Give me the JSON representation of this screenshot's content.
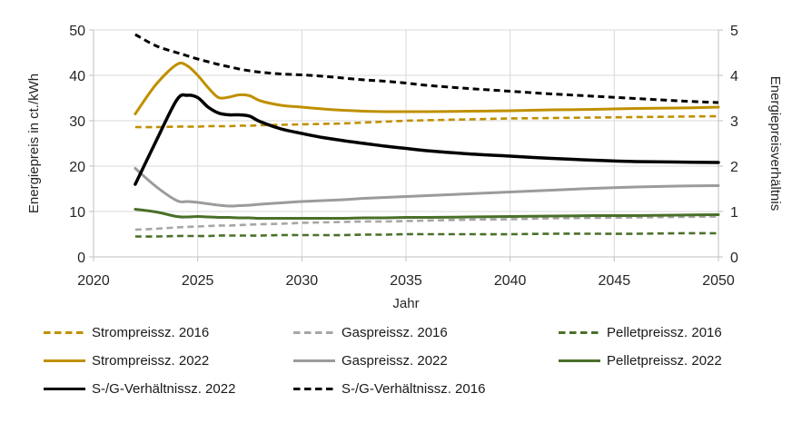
{
  "chart_data": {
    "type": "line",
    "xlabel": "Jahr",
    "ylabel_left": "Energiepreis in ct./kWh",
    "ylabel_right": "Energiepreisverhältnis",
    "xlim": [
      2020,
      2050
    ],
    "xticks": [
      2020,
      2025,
      2030,
      2035,
      2040,
      2045,
      2050
    ],
    "ylim_left": [
      0,
      50
    ],
    "yticks_left": [
      0,
      10,
      20,
      30,
      40,
      50
    ],
    "ylim_right": [
      0,
      5
    ],
    "yticks_right": [
      0,
      1,
      2,
      3,
      4,
      5
    ],
    "grid": true,
    "legend_position": "bottom",
    "x": [
      2022,
      2023,
      2024,
      2024.5,
      2025,
      2025.5,
      2026,
      2026.5,
      2027,
      2027.5,
      2028,
      2029,
      2030,
      2031,
      2032,
      2033,
      2034,
      2035,
      2036,
      2038,
      2040,
      2042,
      2044,
      2046,
      2048,
      2050
    ],
    "series": [
      {
        "name": "Strompreissz. 2016",
        "axis": "left",
        "unit": "ct./kWh",
        "color": "#BF9000",
        "dash": true,
        "values": [
          28.6,
          28.6,
          28.7,
          28.7,
          28.7,
          28.8,
          28.8,
          28.8,
          28.9,
          28.9,
          29.0,
          29.1,
          29.2,
          29.3,
          29.4,
          29.6,
          29.8,
          30.0,
          30.1,
          30.3,
          30.5,
          30.6,
          30.7,
          30.8,
          30.9,
          31.0
        ]
      },
      {
        "name": "Strompreissz. 2022",
        "axis": "left",
        "unit": "ct./kWh",
        "color": "#BF9000",
        "dash": false,
        "values": [
          31.5,
          38.0,
          42.4,
          42.1,
          40.0,
          37.3,
          35.1,
          35.2,
          35.7,
          35.5,
          34.4,
          33.4,
          33.0,
          32.6,
          32.3,
          32.1,
          32.0,
          32.0,
          32.0,
          32.1,
          32.2,
          32.4,
          32.5,
          32.7,
          32.8,
          33.0
        ]
      },
      {
        "name": "Gaspreissz. 2016",
        "axis": "left",
        "unit": "ct./kWh",
        "color": "#A6A6A6",
        "dash": true,
        "values": [
          6.0,
          6.2,
          6.5,
          6.6,
          6.7,
          6.8,
          6.9,
          6.9,
          7.0,
          7.1,
          7.2,
          7.3,
          7.5,
          7.6,
          7.7,
          7.8,
          7.8,
          7.9,
          8.0,
          8.2,
          8.3,
          8.5,
          8.6,
          8.7,
          8.8,
          8.9
        ]
      },
      {
        "name": "Gaspreissz. 2022",
        "axis": "left",
        "unit": "ct./kWh",
        "color": "#9B9B9B",
        "dash": false,
        "values": [
          19.5,
          15.5,
          12.4,
          12.2,
          12.0,
          11.7,
          11.4,
          11.2,
          11.3,
          11.4,
          11.6,
          11.9,
          12.2,
          12.4,
          12.6,
          12.9,
          13.1,
          13.3,
          13.5,
          13.9,
          14.3,
          14.7,
          15.1,
          15.4,
          15.6,
          15.7
        ]
      },
      {
        "name": "Pelletpreissz. 2016",
        "axis": "left",
        "unit": "ct./kWh",
        "color": "#4A7029",
        "dash": true,
        "values": [
          4.5,
          4.5,
          4.6,
          4.6,
          4.6,
          4.6,
          4.7,
          4.7,
          4.7,
          4.7,
          4.7,
          4.8,
          4.8,
          4.8,
          4.8,
          4.9,
          4.9,
          5.0,
          5.0,
          5.0,
          5.0,
          5.1,
          5.1,
          5.1,
          5.2,
          5.2
        ]
      },
      {
        "name": "Pelletpreissz. 2022",
        "axis": "left",
        "unit": "ct./kWh",
        "color": "#4A7029",
        "dash": false,
        "values": [
          10.5,
          9.9,
          8.9,
          8.8,
          8.9,
          8.8,
          8.7,
          8.7,
          8.6,
          8.6,
          8.5,
          8.5,
          8.5,
          8.5,
          8.5,
          8.6,
          8.6,
          8.7,
          8.7,
          8.8,
          8.9,
          9.0,
          9.1,
          9.1,
          9.2,
          9.3
        ]
      },
      {
        "name": "S-/G-Verhältnissz. 2022",
        "axis": "right",
        "unit": "ratio",
        "color": "#000000",
        "dash": false,
        "values": [
          1.6,
          2.55,
          3.46,
          3.56,
          3.51,
          3.3,
          3.17,
          3.13,
          3.13,
          3.1,
          2.98,
          2.82,
          2.72,
          2.63,
          2.56,
          2.5,
          2.44,
          2.39,
          2.34,
          2.27,
          2.22,
          2.17,
          2.13,
          2.1,
          2.09,
          2.08
        ]
      },
      {
        "name": "S-/G-Verhältnissz. 2016",
        "axis": "right",
        "unit": "ratio",
        "color": "#000000",
        "dash": true,
        "values": [
          4.9,
          4.65,
          4.5,
          4.43,
          4.36,
          4.3,
          4.24,
          4.19,
          4.14,
          4.1,
          4.07,
          4.03,
          4.01,
          3.98,
          3.94,
          3.9,
          3.87,
          3.83,
          3.78,
          3.71,
          3.65,
          3.59,
          3.54,
          3.49,
          3.44,
          3.4
        ]
      }
    ]
  },
  "legend": {
    "items": [
      {
        "label": "Strompreissz. 2016",
        "series": 0
      },
      {
        "label": "Gaspreissz. 2016",
        "series": 2
      },
      {
        "label": "Pelletpreissz. 2016",
        "series": 4
      },
      {
        "label": "Strompreissz. 2022",
        "series": 1
      },
      {
        "label": "Gaspreissz. 2022",
        "series": 3
      },
      {
        "label": "Pelletpreissz. 2022",
        "series": 5
      },
      {
        "label": "S-/G-Verhältnissz. 2022",
        "series": 6
      },
      {
        "label": "S-/G-Verhältnissz. 2016",
        "series": 7
      }
    ]
  },
  "colors": {
    "gridline": "#D9D9D9",
    "axis_line": "#BFBFBF",
    "tick_text": "#262626",
    "strom": "#BF9000",
    "gas": "#9B9B9B",
    "pellet": "#4A7029",
    "verhaeltnis": "#000000"
  }
}
